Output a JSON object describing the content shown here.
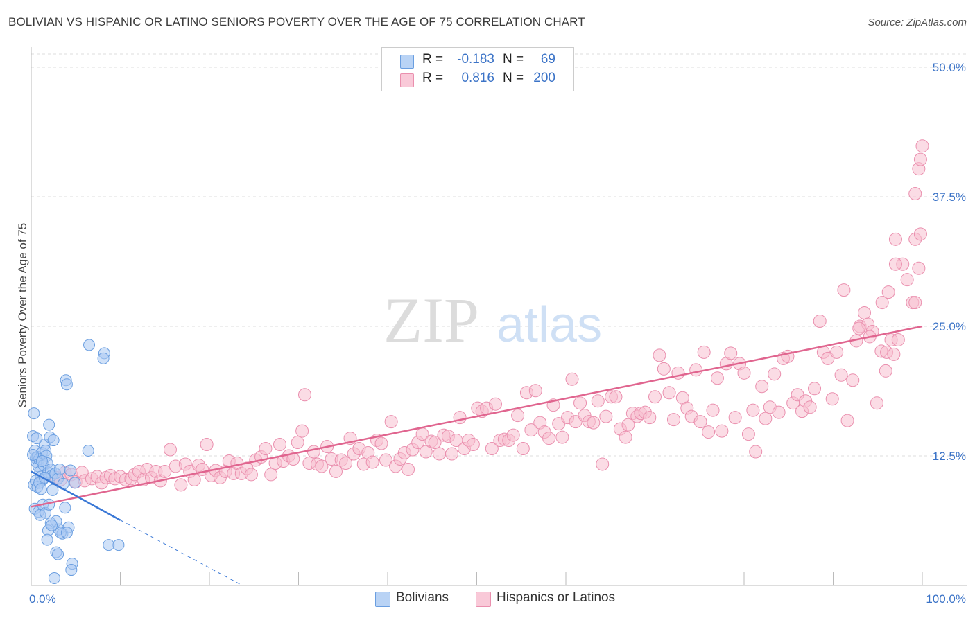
{
  "header": {
    "title": "BOLIVIAN VS HISPANIC OR LATINO SENIORS POVERTY OVER THE AGE OF 75 CORRELATION CHART",
    "source": "Source: ZipAtlas.com"
  },
  "watermark": {
    "zip": "ZIP",
    "atlas": "atlas"
  },
  "legend": {
    "rows": [
      {
        "r_key": "R =",
        "r_value": "-0.183",
        "n_key": "N =",
        "n_value": "69"
      },
      {
        "r_key": "R =",
        "r_value": "0.816",
        "n_key": "N =",
        "n_value": "200"
      }
    ]
  },
  "bottom_legend": {
    "series1": "Bolivians",
    "series2": "Hispanics or Latinos"
  },
  "colors": {
    "blue_fill": "#a9c8f2",
    "blue_stroke": "#6a9ee0",
    "blue_line": "#3a78d6",
    "pink_fill": "#f7bfd0",
    "pink_stroke": "#ea8fae",
    "pink_line": "#e0658f",
    "grid": "#dddddd",
    "tick_label": "#3b73c7"
  },
  "chart_data": {
    "type": "scatter",
    "title": "BOLIVIAN VS HISPANIC OR LATINO SENIORS POVERTY OVER THE AGE OF 75 CORRELATION CHART",
    "xlabel": "",
    "ylabel": "Seniors Poverty Over the Age of 75",
    "xlim": [
      0,
      100
    ],
    "ylim": [
      0,
      50
    ],
    "x_tick_labels": [
      "0.0%",
      "100.0%"
    ],
    "y_ticks": [
      12.5,
      25.0,
      37.5,
      50.0
    ],
    "y_tick_labels": [
      "12.5%",
      "25.0%",
      "37.5%",
      "50.0%"
    ],
    "grid": true,
    "series": [
      {
        "name": "Bolivians",
        "r": -0.183,
        "n": 69,
        "trend": {
          "x0": 0,
          "y0": 11.0,
          "x1": 10,
          "y1": 6.3,
          "dash_to_x": 23.7,
          "dash_to_y": 0
        },
        "points": [
          [
            0.3,
            16.6
          ],
          [
            0.2,
            14.4
          ],
          [
            0.4,
            13.0
          ],
          [
            0.5,
            12.3
          ],
          [
            0.6,
            11.9
          ],
          [
            0.7,
            12.4
          ],
          [
            0.8,
            11.5
          ],
          [
            0.9,
            12.2
          ],
          [
            1.0,
            11.0
          ],
          [
            1.1,
            10.5
          ],
          [
            1.2,
            12.8
          ],
          [
            1.3,
            10.2
          ],
          [
            1.4,
            11.6
          ],
          [
            1.5,
            13.6
          ],
          [
            1.6,
            13.0
          ],
          [
            1.7,
            12.5
          ],
          [
            1.8,
            11.8
          ],
          [
            1.9,
            10.9
          ],
          [
            2.0,
            15.5
          ],
          [
            2.1,
            14.3
          ],
          [
            2.2,
            11.2
          ],
          [
            2.3,
            10.6
          ],
          [
            2.5,
            14.0
          ],
          [
            2.7,
            10.8
          ],
          [
            3.0,
            10.3
          ],
          [
            3.2,
            11.2
          ],
          [
            0.3,
            9.7
          ],
          [
            0.5,
            10.1
          ],
          [
            0.7,
            9.5
          ],
          [
            0.9,
            9.9
          ],
          [
            1.1,
            9.3
          ],
          [
            0.4,
            7.4
          ],
          [
            0.8,
            7.1
          ],
          [
            1.0,
            6.8
          ],
          [
            1.3,
            7.8
          ],
          [
            1.6,
            7.0
          ],
          [
            2.0,
            7.8
          ],
          [
            2.2,
            6.0
          ],
          [
            2.8,
            6.2
          ],
          [
            3.1,
            5.4
          ],
          [
            3.5,
            5.0
          ],
          [
            3.8,
            7.5
          ],
          [
            4.2,
            5.6
          ],
          [
            1.9,
            5.3
          ],
          [
            2.3,
            5.8
          ],
          [
            3.3,
            5.1
          ],
          [
            4.0,
            5.1
          ],
          [
            1.8,
            4.4
          ],
          [
            2.8,
            3.2
          ],
          [
            3.0,
            3.0
          ],
          [
            4.6,
            2.1
          ],
          [
            4.5,
            1.5
          ],
          [
            2.6,
            0.7
          ],
          [
            8.7,
            3.9
          ],
          [
            9.8,
            3.9
          ],
          [
            6.5,
            23.2
          ],
          [
            8.2,
            22.4
          ],
          [
            8.1,
            21.9
          ],
          [
            3.9,
            19.8
          ],
          [
            4.0,
            19.4
          ],
          [
            4.4,
            11.1
          ],
          [
            6.4,
            13.0
          ],
          [
            0.6,
            14.2
          ],
          [
            1.2,
            12.0
          ],
          [
            2.4,
            9.2
          ],
          [
            3.6,
            9.8
          ],
          [
            4.9,
            9.9
          ],
          [
            0.2,
            12.6
          ],
          [
            1.5,
            10.4
          ]
        ]
      },
      {
        "name": "Hispanics or Latinos",
        "r": 0.816,
        "n": 200,
        "trend": {
          "x0": 0,
          "y0": 7.6,
          "x1": 100,
          "y1": 25.0
        },
        "points": [
          [
            2.8,
            10.4
          ],
          [
            3.3,
            10.2
          ],
          [
            3.8,
            10.9
          ],
          [
            4.5,
            10.7
          ],
          [
            5.0,
            10.0
          ],
          [
            5.7,
            10.9
          ],
          [
            6.0,
            10.1
          ],
          [
            6.8,
            10.3
          ],
          [
            7.4,
            10.5
          ],
          [
            7.9,
            9.9
          ],
          [
            8.4,
            10.4
          ],
          [
            8.9,
            10.6
          ],
          [
            9.4,
            10.3
          ],
          [
            10.0,
            10.5
          ],
          [
            10.6,
            10.2
          ],
          [
            11.2,
            10.3
          ],
          [
            11.6,
            10.7
          ],
          [
            12.1,
            11.0
          ],
          [
            12.6,
            10.2
          ],
          [
            13.0,
            11.2
          ],
          [
            13.5,
            10.4
          ],
          [
            14.0,
            11.0
          ],
          [
            14.5,
            10.1
          ],
          [
            15.0,
            11.0
          ],
          [
            15.6,
            13.1
          ],
          [
            16.2,
            11.5
          ],
          [
            16.8,
            9.7
          ],
          [
            17.3,
            11.7
          ],
          [
            17.8,
            11.0
          ],
          [
            18.3,
            10.2
          ],
          [
            18.8,
            11.6
          ],
          [
            19.2,
            11.2
          ],
          [
            19.7,
            13.6
          ],
          [
            20.2,
            10.6
          ],
          [
            20.7,
            11.1
          ],
          [
            21.2,
            10.4
          ],
          [
            21.8,
            11.0
          ],
          [
            22.2,
            12.0
          ],
          [
            22.7,
            10.8
          ],
          [
            23.1,
            11.8
          ],
          [
            23.6,
            10.8
          ],
          [
            24.2,
            11.3
          ],
          [
            24.7,
            10.7
          ],
          [
            25.2,
            12.1
          ],
          [
            25.8,
            12.4
          ],
          [
            26.3,
            13.2
          ],
          [
            26.9,
            10.7
          ],
          [
            27.4,
            11.8
          ],
          [
            27.9,
            13.6
          ],
          [
            28.3,
            12.0
          ],
          [
            28.9,
            12.5
          ],
          [
            29.4,
            12.2
          ],
          [
            29.9,
            13.8
          ],
          [
            30.4,
            14.9
          ],
          [
            30.7,
            18.4
          ],
          [
            31.2,
            11.8
          ],
          [
            31.7,
            12.9
          ],
          [
            32.1,
            11.7
          ],
          [
            32.6,
            11.5
          ],
          [
            33.2,
            13.4
          ],
          [
            33.7,
            12.2
          ],
          [
            34.2,
            11.0
          ],
          [
            34.8,
            12.1
          ],
          [
            35.3,
            11.8
          ],
          [
            35.8,
            14.2
          ],
          [
            36.2,
            12.7
          ],
          [
            36.8,
            13.2
          ],
          [
            37.3,
            11.7
          ],
          [
            37.8,
            12.8
          ],
          [
            38.3,
            11.9
          ],
          [
            38.8,
            14.0
          ],
          [
            39.3,
            13.7
          ],
          [
            39.8,
            12.1
          ],
          [
            40.4,
            15.8
          ],
          [
            40.9,
            11.5
          ],
          [
            41.4,
            12.2
          ],
          [
            41.9,
            12.8
          ],
          [
            42.3,
            11.2
          ],
          [
            42.8,
            13.1
          ],
          [
            43.4,
            13.8
          ],
          [
            43.9,
            14.6
          ],
          [
            44.3,
            12.9
          ],
          [
            44.9,
            13.9
          ],
          [
            45.3,
            13.8
          ],
          [
            45.8,
            12.7
          ],
          [
            46.3,
            14.5
          ],
          [
            46.8,
            14.4
          ],
          [
            47.2,
            12.7
          ],
          [
            47.7,
            14.0
          ],
          [
            48.1,
            16.2
          ],
          [
            48.6,
            13.2
          ],
          [
            49.1,
            14.0
          ],
          [
            49.6,
            13.6
          ],
          [
            50.1,
            17.1
          ],
          [
            50.6,
            16.8
          ],
          [
            51.1,
            17.1
          ],
          [
            51.7,
            13.2
          ],
          [
            52.1,
            17.5
          ],
          [
            52.6,
            14.0
          ],
          [
            53.1,
            14.1
          ],
          [
            53.6,
            14.0
          ],
          [
            54.1,
            14.5
          ],
          [
            54.6,
            16.4
          ],
          [
            55.2,
            13.2
          ],
          [
            55.6,
            18.6
          ],
          [
            56.1,
            15.0
          ],
          [
            56.6,
            18.8
          ],
          [
            57.1,
            15.7
          ],
          [
            57.6,
            14.8
          ],
          [
            58.1,
            14.2
          ],
          [
            58.6,
            17.4
          ],
          [
            59.2,
            15.6
          ],
          [
            59.6,
            14.3
          ],
          [
            60.2,
            16.2
          ],
          [
            60.7,
            19.9
          ],
          [
            61.1,
            15.8
          ],
          [
            61.6,
            17.6
          ],
          [
            62.1,
            16.4
          ],
          [
            62.6,
            15.8
          ],
          [
            63.1,
            15.7
          ],
          [
            63.6,
            17.8
          ],
          [
            64.1,
            11.7
          ],
          [
            64.5,
            16.3
          ],
          [
            65.1,
            18.2
          ],
          [
            65.6,
            18.2
          ],
          [
            66.1,
            15.1
          ],
          [
            66.7,
            14.3
          ],
          [
            67.0,
            15.5
          ],
          [
            67.5,
            16.6
          ],
          [
            68.0,
            16.3
          ],
          [
            68.4,
            16.6
          ],
          [
            68.9,
            16.7
          ],
          [
            69.4,
            16.2
          ],
          [
            70.0,
            18.2
          ],
          [
            70.5,
            22.2
          ],
          [
            71.0,
            20.9
          ],
          [
            71.6,
            18.6
          ],
          [
            72.1,
            16.0
          ],
          [
            72.6,
            20.5
          ],
          [
            73.1,
            18.1
          ],
          [
            73.6,
            17.1
          ],
          [
            74.1,
            16.3
          ],
          [
            74.6,
            20.8
          ],
          [
            75.1,
            15.8
          ],
          [
            75.5,
            22.5
          ],
          [
            76.0,
            14.8
          ],
          [
            76.5,
            16.9
          ],
          [
            77.0,
            20.0
          ],
          [
            77.5,
            14.9
          ],
          [
            78.0,
            21.4
          ],
          [
            78.5,
            22.4
          ],
          [
            79.0,
            16.2
          ],
          [
            79.5,
            21.4
          ],
          [
            80.0,
            20.5
          ],
          [
            80.5,
            14.6
          ],
          [
            81.0,
            16.9
          ],
          [
            81.3,
            12.9
          ],
          [
            82.0,
            19.2
          ],
          [
            82.4,
            16.1
          ],
          [
            82.9,
            17.2
          ],
          [
            83.4,
            20.4
          ],
          [
            83.9,
            16.7
          ],
          [
            84.4,
            21.9
          ],
          [
            84.9,
            22.1
          ],
          [
            85.5,
            17.6
          ],
          [
            86.0,
            18.4
          ],
          [
            86.5,
            16.8
          ],
          [
            86.9,
            17.8
          ],
          [
            87.4,
            17.2
          ],
          [
            87.9,
            19.0
          ],
          [
            88.5,
            25.5
          ],
          [
            88.9,
            22.5
          ],
          [
            89.4,
            21.9
          ],
          [
            89.9,
            18.0
          ],
          [
            90.4,
            22.5
          ],
          [
            90.9,
            20.3
          ],
          [
            91.2,
            28.5
          ],
          [
            91.6,
            15.9
          ],
          [
            92.2,
            19.8
          ],
          [
            92.6,
            23.6
          ],
          [
            93.0,
            25.0
          ],
          [
            93.5,
            26.3
          ],
          [
            93.9,
            25.2
          ],
          [
            94.4,
            24.5
          ],
          [
            94.9,
            17.6
          ],
          [
            95.4,
            22.6
          ],
          [
            95.9,
            20.7
          ],
          [
            96.2,
            28.3
          ],
          [
            96.5,
            23.7
          ],
          [
            97.0,
            33.4
          ],
          [
            97.3,
            23.7
          ],
          [
            97.8,
            31.0
          ],
          [
            98.3,
            29.5
          ],
          [
            98.9,
            27.3
          ],
          [
            99.2,
            27.3
          ],
          [
            99.6,
            30.6
          ],
          [
            99.2,
            33.4
          ],
          [
            99.8,
            33.9
          ],
          [
            99.2,
            37.8
          ],
          [
            99.6,
            40.2
          ],
          [
            99.8,
            41.1
          ],
          [
            100.0,
            42.4
          ],
          [
            96.0,
            22.5
          ],
          [
            95.5,
            27.3
          ],
          [
            97.0,
            31.0
          ],
          [
            96.8,
            22.3
          ],
          [
            94.1,
            24.0
          ],
          [
            92.9,
            24.8
          ]
        ]
      }
    ]
  }
}
